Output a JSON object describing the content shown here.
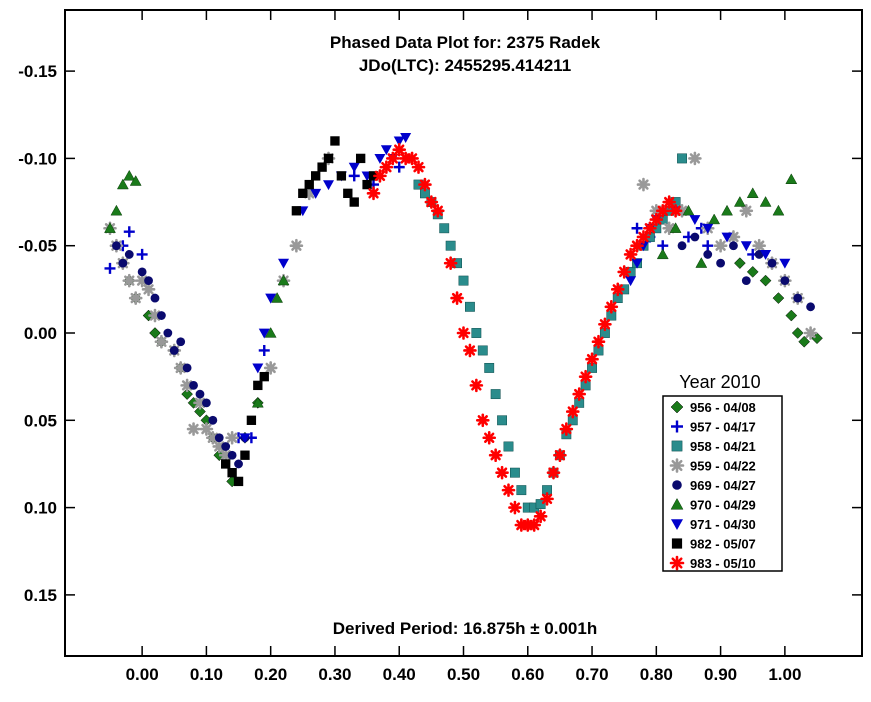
{
  "chart_data": {
    "type": "scatter",
    "title": "Phased Data Plot for: 2375 Radek",
    "subtitle": "JDo(LTC): 2455295.414211",
    "footer": "Derived Period: 16.875h  ± 0.001h",
    "xlabel": "",
    "ylabel": "",
    "xlim": [
      -0.12,
      1.12
    ],
    "ylim": [
      0.185,
      -0.185
    ],
    "y_inverted": true,
    "grid": false,
    "legend_position": "right",
    "legend_title": "Year 2010",
    "x_ticks": [
      "0.00",
      "0.10",
      "0.20",
      "0.30",
      "0.40",
      "0.50",
      "0.60",
      "0.70",
      "0.80",
      "0.90",
      "1.00"
    ],
    "y_ticks": [
      "-0.15",
      "-0.10",
      "-0.05",
      "0.00",
      "0.05",
      "0.10",
      "0.15"
    ],
    "series": [
      {
        "name": "956 - 04/08",
        "marker": "diamond",
        "color": "#1a7a1a",
        "x": [
          -0.03,
          -0.02,
          -0.01,
          0.01,
          0.02,
          0.03,
          0.05,
          0.06,
          0.07,
          0.08,
          0.09,
          0.1,
          0.11,
          0.12,
          0.14,
          0.16,
          0.18,
          0.93,
          0.95,
          0.97,
          0.99,
          1.01,
          1.02,
          1.03,
          1.05
        ],
        "y": [
          -0.04,
          -0.03,
          -0.02,
          -0.01,
          0.0,
          0.005,
          0.01,
          0.02,
          0.035,
          0.04,
          0.045,
          0.05,
          0.06,
          0.07,
          0.085,
          0.06,
          0.04,
          -0.04,
          -0.035,
          -0.03,
          -0.02,
          -0.01,
          0.0,
          0.005,
          0.003
        ]
      },
      {
        "name": "957 - 04/17",
        "marker": "plus",
        "color": "#0000cc",
        "x": [
          -0.05,
          -0.03,
          -0.02,
          0.0,
          0.15,
          0.17,
          0.19,
          0.33,
          0.36,
          0.4,
          0.77,
          0.79,
          0.81,
          0.85,
          0.87,
          0.88,
          0.95,
          0.98
        ],
        "y": [
          -0.037,
          -0.05,
          -0.058,
          -0.045,
          0.06,
          0.06,
          0.01,
          -0.09,
          -0.085,
          -0.095,
          -0.06,
          -0.055,
          -0.05,
          -0.055,
          -0.06,
          -0.05,
          -0.045,
          -0.04
        ]
      },
      {
        "name": "958 - 04/21",
        "marker": "square",
        "color": "#2a8c8c",
        "x": [
          0.43,
          0.44,
          0.45,
          0.46,
          0.47,
          0.48,
          0.49,
          0.5,
          0.51,
          0.52,
          0.53,
          0.54,
          0.55,
          0.56,
          0.57,
          0.58,
          0.59,
          0.6,
          0.61,
          0.62,
          0.63,
          0.64,
          0.65,
          0.66,
          0.67,
          0.68,
          0.69,
          0.7,
          0.71,
          0.72,
          0.73,
          0.74,
          0.75,
          0.76,
          0.77,
          0.78,
          0.79,
          0.8,
          0.81,
          0.82,
          0.83,
          0.84
        ],
        "y": [
          -0.085,
          -0.08,
          -0.075,
          -0.068,
          -0.06,
          -0.05,
          -0.04,
          -0.03,
          -0.015,
          0.0,
          0.01,
          0.02,
          0.035,
          0.05,
          0.065,
          0.08,
          0.09,
          0.1,
          0.1,
          0.098,
          0.09,
          0.08,
          0.07,
          0.058,
          0.05,
          0.04,
          0.03,
          0.02,
          0.01,
          0.0,
          -0.01,
          -0.02,
          -0.025,
          -0.035,
          -0.04,
          -0.05,
          -0.055,
          -0.06,
          -0.065,
          -0.07,
          -0.075,
          -0.1
        ]
      },
      {
        "name": "959 - 04/22",
        "marker": "asterisk",
        "color": "#999999",
        "x": [
          -0.05,
          -0.04,
          -0.03,
          -0.02,
          -0.01,
          0.0,
          0.01,
          0.02,
          0.03,
          0.05,
          0.06,
          0.07,
          0.08,
          0.09,
          0.1,
          0.11,
          0.12,
          0.13,
          0.14,
          0.2,
          0.22,
          0.24,
          0.26,
          0.29,
          0.78,
          0.8,
          0.82,
          0.84,
          0.86,
          0.88,
          0.9,
          0.92,
          0.94,
          0.96,
          0.98,
          1.0,
          1.02,
          1.04
        ],
        "y": [
          -0.06,
          -0.05,
          -0.04,
          -0.03,
          -0.02,
          -0.03,
          -0.025,
          -0.01,
          0.005,
          0.01,
          0.02,
          0.03,
          0.055,
          0.04,
          0.055,
          0.06,
          0.065,
          0.07,
          0.06,
          0.02,
          -0.03,
          -0.05,
          -0.08,
          -0.1,
          -0.085,
          -0.07,
          -0.06,
          -0.07,
          -0.1,
          -0.06,
          -0.05,
          -0.055,
          -0.07,
          -0.05,
          -0.04,
          -0.03,
          -0.02,
          0.0
        ]
      },
      {
        "name": "969 - 04/27",
        "marker": "circle",
        "color": "#0a0a6e",
        "x": [
          -0.04,
          -0.03,
          -0.02,
          0.0,
          0.01,
          0.02,
          0.03,
          0.04,
          0.05,
          0.06,
          0.07,
          0.08,
          0.09,
          0.1,
          0.11,
          0.12,
          0.13,
          0.14,
          0.15,
          0.16,
          0.84,
          0.86,
          0.88,
          0.9,
          0.92,
          0.94,
          0.96,
          0.98,
          1.0,
          1.02,
          1.04
        ],
        "y": [
          -0.05,
          -0.04,
          -0.045,
          -0.035,
          -0.03,
          -0.02,
          -0.01,
          0.0,
          0.01,
          0.005,
          0.02,
          0.03,
          0.035,
          0.04,
          0.05,
          0.06,
          0.065,
          0.07,
          0.075,
          0.06,
          -0.05,
          -0.055,
          -0.045,
          -0.04,
          -0.05,
          -0.03,
          -0.045,
          -0.04,
          -0.03,
          -0.02,
          -0.015
        ]
      },
      {
        "name": "970 - 04/29",
        "marker": "triangle-up",
        "color": "#1a7a1a",
        "x": [
          -0.05,
          -0.04,
          -0.03,
          -0.02,
          -0.01,
          0.18,
          0.2,
          0.21,
          0.22,
          0.81,
          0.83,
          0.85,
          0.87,
          0.89,
          0.91,
          0.93,
          0.95,
          0.97,
          0.99,
          1.01
        ],
        "y": [
          -0.06,
          -0.07,
          -0.085,
          -0.09,
          -0.087,
          0.04,
          0.0,
          -0.02,
          -0.03,
          -0.045,
          -0.06,
          -0.07,
          -0.04,
          -0.065,
          -0.07,
          -0.075,
          -0.08,
          -0.075,
          -0.07,
          -0.088
        ]
      },
      {
        "name": "971 - 04/30",
        "marker": "triangle-down",
        "color": "#0000cc",
        "x": [
          0.16,
          0.18,
          0.19,
          0.2,
          0.22,
          0.25,
          0.27,
          0.29,
          0.31,
          0.33,
          0.35,
          0.37,
          0.38,
          0.39,
          0.4,
          0.41,
          0.76,
          0.77,
          0.78,
          0.79,
          0.8,
          0.83,
          0.86,
          0.88,
          0.91,
          0.94,
          0.97,
          1.0
        ],
        "y": [
          0.06,
          0.02,
          0.0,
          -0.02,
          -0.04,
          -0.07,
          -0.08,
          -0.085,
          -0.09,
          -0.095,
          -0.09,
          -0.1,
          -0.105,
          -0.1,
          -0.11,
          -0.112,
          -0.03,
          -0.04,
          -0.05,
          -0.06,
          -0.065,
          -0.07,
          -0.065,
          -0.06,
          -0.055,
          -0.05,
          -0.045,
          -0.04
        ]
      },
      {
        "name": "982 - 05/07",
        "marker": "square-filled",
        "color": "#000000",
        "x": [
          0.13,
          0.14,
          0.15,
          0.16,
          0.17,
          0.18,
          0.19,
          0.24,
          0.25,
          0.26,
          0.27,
          0.28,
          0.29,
          0.3,
          0.31,
          0.32,
          0.33,
          0.34,
          0.35,
          0.36
        ],
        "y": [
          0.075,
          0.08,
          0.085,
          0.07,
          0.05,
          0.03,
          0.025,
          -0.07,
          -0.08,
          -0.085,
          -0.09,
          -0.095,
          -0.1,
          -0.11,
          -0.09,
          -0.08,
          -0.075,
          -0.1,
          -0.085,
          -0.09
        ]
      },
      {
        "name": "983 - 05/10",
        "marker": "asterisk",
        "color": "#ff0000",
        "x": [
          0.36,
          0.37,
          0.38,
          0.39,
          0.4,
          0.41,
          0.42,
          0.43,
          0.44,
          0.45,
          0.46,
          0.48,
          0.49,
          0.5,
          0.51,
          0.52,
          0.53,
          0.54,
          0.55,
          0.56,
          0.57,
          0.58,
          0.59,
          0.6,
          0.61,
          0.62,
          0.63,
          0.64,
          0.65,
          0.66,
          0.67,
          0.68,
          0.69,
          0.7,
          0.71,
          0.72,
          0.73,
          0.74,
          0.75,
          0.76,
          0.77,
          0.78,
          0.79,
          0.8,
          0.81,
          0.82,
          0.83
        ],
        "y": [
          -0.08,
          -0.09,
          -0.095,
          -0.1,
          -0.105,
          -0.1,
          -0.1,
          -0.095,
          -0.085,
          -0.075,
          -0.07,
          -0.04,
          -0.02,
          0.0,
          0.01,
          0.03,
          0.05,
          0.06,
          0.07,
          0.08,
          0.09,
          0.1,
          0.11,
          0.11,
          0.11,
          0.105,
          0.095,
          0.08,
          0.07,
          0.055,
          0.045,
          0.035,
          0.025,
          0.015,
          0.005,
          -0.005,
          -0.015,
          -0.025,
          -0.035,
          -0.045,
          -0.05,
          -0.055,
          -0.06,
          -0.065,
          -0.07,
          -0.075,
          -0.07
        ]
      }
    ]
  }
}
